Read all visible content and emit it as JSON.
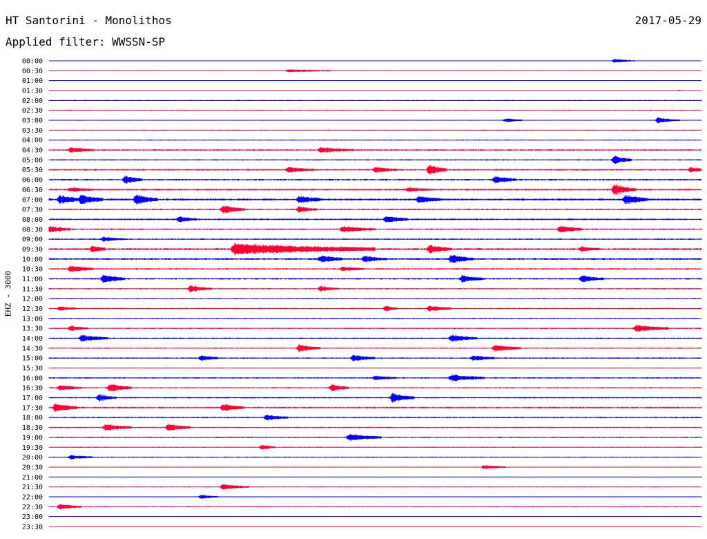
{
  "header": {
    "title": "HT Santorini - Monolithos",
    "date": "2017-05-29",
    "filter": "Applied filter: WWSSN-SP"
  },
  "chart_data": {
    "type": "line",
    "ylabel": "EHZ - 3000",
    "colors": [
      "#0000ff",
      "#ff0033"
    ],
    "grid": false,
    "legend": "none",
    "tick_labels": [
      "00:00",
      "00:30",
      "01:00",
      "01:30",
      "02:00",
      "02:30",
      "03:00",
      "03:30",
      "04:00",
      "04:30",
      "05:00",
      "05:30",
      "06:00",
      "06:30",
      "07:00",
      "07:30",
      "08:00",
      "08:30",
      "09:00",
      "09:30",
      "10:00",
      "10:30",
      "11:00",
      "11:30",
      "12:00",
      "12:30",
      "13:00",
      "13:30",
      "14:00",
      "14:30",
      "15:00",
      "15:30",
      "16:00",
      "16:30",
      "17:00",
      "17:30",
      "18:00",
      "18:30",
      "19:00",
      "19:30",
      "20:00",
      "20:30",
      "21:00",
      "21:30",
      "22:00",
      "22:30",
      "23:00",
      "23:30"
    ],
    "noise_level": [
      0.3,
      0.5,
      0.2,
      0.2,
      0.6,
      0.6,
      0.5,
      0.6,
      0.6,
      0.9,
      0.8,
      0.9,
      1.0,
      1.0,
      1.3,
      0.9,
      1.0,
      0.9,
      0.8,
      1.2,
      1.1,
      0.9,
      0.9,
      0.7,
      0.7,
      0.8,
      0.7,
      0.8,
      0.8,
      0.7,
      0.8,
      0.6,
      0.8,
      0.8,
      0.8,
      1.0,
      0.8,
      0.8,
      0.7,
      0.6,
      0.7,
      0.5,
      0.5,
      0.6,
      0.4,
      0.7,
      0.4,
      0.3
    ],
    "events": [
      {
        "line": 0,
        "minute": 26.0,
        "amp": 3,
        "dur": 1.0
      },
      {
        "line": 1,
        "minute": 11.0,
        "amp": 2,
        "dur": 2.0
      },
      {
        "line": 3,
        "minute": 29.0,
        "amp": 1,
        "dur": 0.3
      },
      {
        "line": 6,
        "minute": 21.0,
        "amp": 3,
        "dur": 0.8
      },
      {
        "line": 6,
        "minute": 28.0,
        "amp": 4,
        "dur": 1.0
      },
      {
        "line": 9,
        "minute": 1.0,
        "amp": 4,
        "dur": 1.0
      },
      {
        "line": 9,
        "minute": 12.5,
        "amp": 4,
        "dur": 1.5
      },
      {
        "line": 10,
        "minute": 26.0,
        "amp": 6,
        "dur": 0.8
      },
      {
        "line": 11,
        "minute": 11.0,
        "amp": 4,
        "dur": 1.2
      },
      {
        "line": 11,
        "minute": 15.0,
        "amp": 4,
        "dur": 1.0
      },
      {
        "line": 11,
        "minute": 17.5,
        "amp": 8,
        "dur": 0.8
      },
      {
        "line": 11,
        "minute": 29.5,
        "amp": 3,
        "dur": 1.0
      },
      {
        "line": 12,
        "minute": 3.5,
        "amp": 6,
        "dur": 0.8
      },
      {
        "line": 12,
        "minute": 20.5,
        "amp": 5,
        "dur": 1.0
      },
      {
        "line": 13,
        "minute": 1.0,
        "amp": 3,
        "dur": 1.0
      },
      {
        "line": 13,
        "minute": 16.5,
        "amp": 3,
        "dur": 1.0
      },
      {
        "line": 13,
        "minute": 26.0,
        "amp": 8,
        "dur": 1.0
      },
      {
        "line": 14,
        "minute": 0.5,
        "amp": 6,
        "dur": 1.0
      },
      {
        "line": 14,
        "minute": 1.5,
        "amp": 6,
        "dur": 1.0
      },
      {
        "line": 14,
        "minute": 4.0,
        "amp": 7,
        "dur": 1.0
      },
      {
        "line": 14,
        "minute": 11.5,
        "amp": 5,
        "dur": 1.0
      },
      {
        "line": 14,
        "minute": 17.0,
        "amp": 5,
        "dur": 1.0
      },
      {
        "line": 14,
        "minute": 26.5,
        "amp": 7,
        "dur": 1.0
      },
      {
        "line": 15,
        "minute": 8.0,
        "amp": 6,
        "dur": 1.0
      },
      {
        "line": 15,
        "minute": 11.5,
        "amp": 4,
        "dur": 0.8
      },
      {
        "line": 16,
        "minute": 6.0,
        "amp": 4,
        "dur": 0.8
      },
      {
        "line": 16,
        "minute": 15.5,
        "amp": 5,
        "dur": 1.0
      },
      {
        "line": 17,
        "minute": 0.0,
        "amp": 5,
        "dur": 1.0
      },
      {
        "line": 17,
        "minute": 13.5,
        "amp": 4,
        "dur": 1.5
      },
      {
        "line": 17,
        "minute": 23.5,
        "amp": 5,
        "dur": 1.0
      },
      {
        "line": 18,
        "minute": 2.5,
        "amp": 3,
        "dur": 1.0
      },
      {
        "line": 19,
        "minute": 2.0,
        "amp": 5,
        "dur": 0.6
      },
      {
        "line": 19,
        "minute": 8.5,
        "amp": 8,
        "dur": 6.5
      },
      {
        "line": 19,
        "minute": 17.5,
        "amp": 6,
        "dur": 1.0
      },
      {
        "line": 19,
        "minute": 24.5,
        "amp": 3,
        "dur": 0.8
      },
      {
        "line": 20,
        "minute": 12.5,
        "amp": 5,
        "dur": 1.0
      },
      {
        "line": 20,
        "minute": 14.5,
        "amp": 4,
        "dur": 1.0
      },
      {
        "line": 20,
        "minute": 18.5,
        "amp": 6,
        "dur": 1.0
      },
      {
        "line": 21,
        "minute": 1.0,
        "amp": 5,
        "dur": 1.0
      },
      {
        "line": 21,
        "minute": 13.5,
        "amp": 3,
        "dur": 1.0
      },
      {
        "line": 22,
        "minute": 2.5,
        "amp": 6,
        "dur": 1.0
      },
      {
        "line": 22,
        "minute": 19.0,
        "amp": 5,
        "dur": 1.0
      },
      {
        "line": 22,
        "minute": 24.5,
        "amp": 5,
        "dur": 1.0
      },
      {
        "line": 23,
        "minute": 6.5,
        "amp": 5,
        "dur": 1.0
      },
      {
        "line": 23,
        "minute": 12.5,
        "amp": 4,
        "dur": 0.8
      },
      {
        "line": 25,
        "minute": 0.5,
        "amp": 3,
        "dur": 0.8
      },
      {
        "line": 25,
        "minute": 15.5,
        "amp": 4,
        "dur": 0.5
      },
      {
        "line": 25,
        "minute": 17.5,
        "amp": 4,
        "dur": 1.0
      },
      {
        "line": 27,
        "minute": 1.0,
        "amp": 4,
        "dur": 0.8
      },
      {
        "line": 27,
        "minute": 27.0,
        "amp": 5,
        "dur": 1.5
      },
      {
        "line": 28,
        "minute": 1.5,
        "amp": 5,
        "dur": 1.2
      },
      {
        "line": 28,
        "minute": 18.5,
        "amp": 5,
        "dur": 1.2
      },
      {
        "line": 29,
        "minute": 11.5,
        "amp": 5,
        "dur": 1.0
      },
      {
        "line": 29,
        "minute": 20.5,
        "amp": 5,
        "dur": 1.2
      },
      {
        "line": 30,
        "minute": 7.0,
        "amp": 4,
        "dur": 0.8
      },
      {
        "line": 30,
        "minute": 14.0,
        "amp": 5,
        "dur": 1.0
      },
      {
        "line": 30,
        "minute": 19.5,
        "amp": 4,
        "dur": 1.0
      },
      {
        "line": 32,
        "minute": 15.0,
        "amp": 3,
        "dur": 1.0
      },
      {
        "line": 32,
        "minute": 18.5,
        "amp": 5,
        "dur": 1.5
      },
      {
        "line": 33,
        "minute": 0.5,
        "amp": 4,
        "dur": 1.0
      },
      {
        "line": 33,
        "minute": 2.8,
        "amp": 6,
        "dur": 1.0
      },
      {
        "line": 33,
        "minute": 13.0,
        "amp": 5,
        "dur": 0.8
      },
      {
        "line": 34,
        "minute": 2.3,
        "amp": 5,
        "dur": 0.8
      },
      {
        "line": 34,
        "minute": 15.8,
        "amp": 7,
        "dur": 1.0
      },
      {
        "line": 35,
        "minute": 0.3,
        "amp": 7,
        "dur": 1.0
      },
      {
        "line": 35,
        "minute": 8.0,
        "amp": 5,
        "dur": 1.0
      },
      {
        "line": 36,
        "minute": 10.0,
        "amp": 4,
        "dur": 1.0
      },
      {
        "line": 37,
        "minute": 2.6,
        "amp": 5,
        "dur": 1.2
      },
      {
        "line": 37,
        "minute": 5.5,
        "amp": 5,
        "dur": 1.0
      },
      {
        "line": 38,
        "minute": 13.8,
        "amp": 5,
        "dur": 1.5
      },
      {
        "line": 39,
        "minute": 9.8,
        "amp": 4,
        "dur": 0.6
      },
      {
        "line": 40,
        "minute": 1.0,
        "amp": 3,
        "dur": 1.0
      },
      {
        "line": 41,
        "minute": 20.0,
        "amp": 3,
        "dur": 1.0
      },
      {
        "line": 43,
        "minute": 8.0,
        "amp": 4,
        "dur": 1.2
      },
      {
        "line": 44,
        "minute": 7.0,
        "amp": 3,
        "dur": 0.8
      },
      {
        "line": 45,
        "minute": 0.5,
        "amp": 4,
        "dur": 1.0
      }
    ]
  }
}
